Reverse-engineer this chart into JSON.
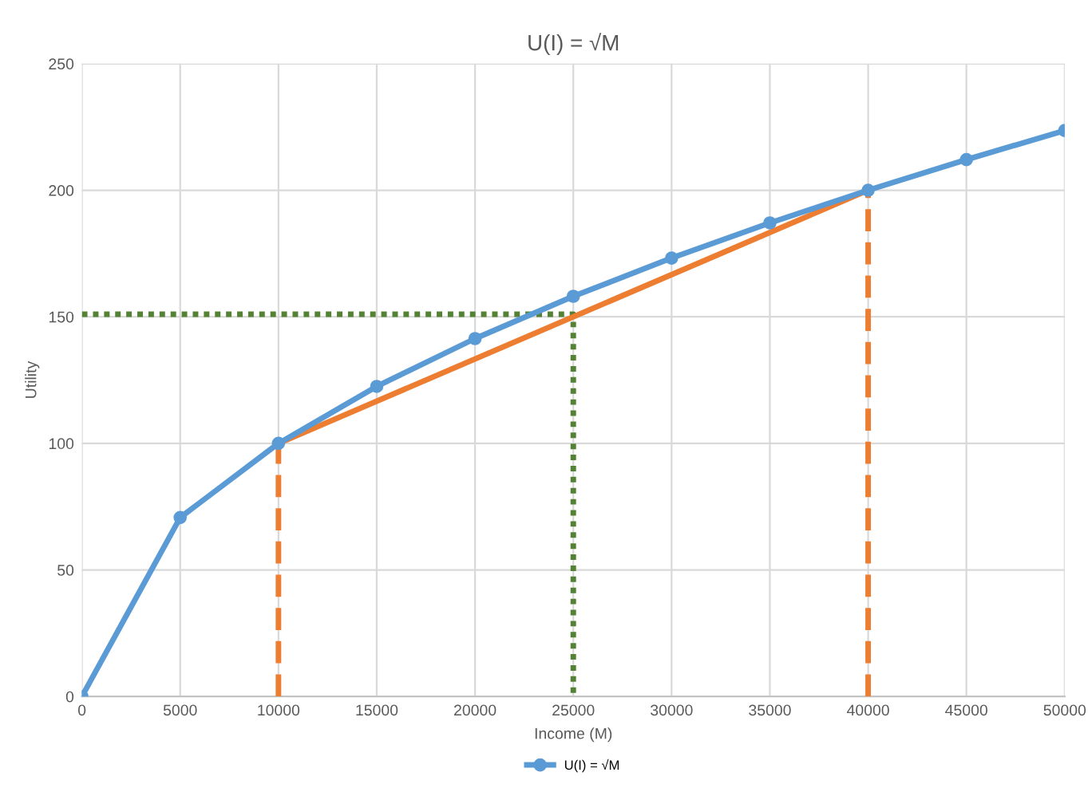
{
  "chart_data": {
    "type": "line",
    "title": "U(I) = √M",
    "xlabel": "Income (M)",
    "ylabel": "Utility",
    "xlim": [
      0,
      50000
    ],
    "xticks": [
      0,
      5000,
      10000,
      15000,
      20000,
      25000,
      30000,
      35000,
      40000,
      45000,
      50000
    ],
    "ylim": [
      0,
      250
    ],
    "yticks": [
      0,
      50,
      100,
      150,
      200,
      250
    ],
    "grid": true,
    "legend": "bottom",
    "series": [
      {
        "name": "U(I) = √M",
        "color": "#5b9bd5",
        "marker": "circle",
        "line_style": "solid",
        "x": [
          0,
          5000,
          10000,
          15000,
          20000,
          25000,
          30000,
          35000,
          40000,
          45000,
          50000
        ],
        "values": [
          0,
          70.7,
          100,
          122.5,
          141.4,
          158.1,
          173.2,
          187.1,
          200,
          212.1,
          223.6
        ]
      },
      {
        "color": "#ed7d31",
        "marker": "none",
        "line_style": "solid",
        "x": [
          10000,
          40000
        ],
        "values": [
          100,
          200
        ]
      },
      {
        "color": "#ed7d31",
        "marker": "none",
        "line_style": "dashed",
        "x": [
          10000,
          10000
        ],
        "values": [
          0,
          100
        ]
      },
      {
        "color": "#ed7d31",
        "marker": "none",
        "line_style": "dashed",
        "x": [
          40000,
          40000
        ],
        "values": [
          0,
          200
        ]
      },
      {
        "color": "#548235",
        "marker": "none",
        "line_style": "dotted",
        "x": [
          0,
          25000,
          25000
        ],
        "values": [
          151,
          151,
          0
        ]
      }
    ]
  }
}
